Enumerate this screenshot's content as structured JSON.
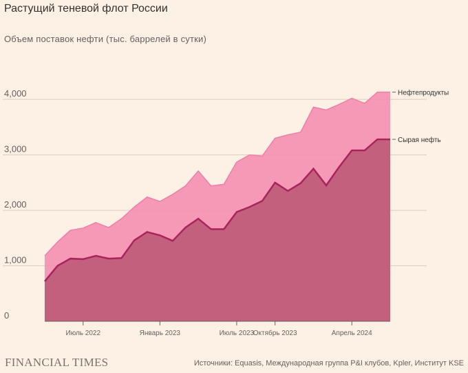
{
  "header": {
    "title": "Растущий теневой флот России",
    "subtitle": "Объем поставок нефти (тыс. баррелей в сутки)"
  },
  "footer": {
    "brand": "FINANCIAL TIMES",
    "source": "Источники: Equasis, Международная группа P&I клубов, Kpler, Институт KSE"
  },
  "chart_data": {
    "type": "area",
    "stacked": true,
    "x": [
      "2022-04",
      "2022-05",
      "2022-06",
      "2022-07",
      "2022-08",
      "2022-09",
      "2022-10",
      "2022-11",
      "2022-12",
      "2023-01",
      "2023-02",
      "2023-03",
      "2023-04",
      "2023-05",
      "2023-06",
      "2023-07",
      "2023-08",
      "2023-09",
      "2023-10",
      "2023-11",
      "2023-12",
      "2024-01",
      "2024-02",
      "2024-03",
      "2024-04",
      "2024-05",
      "2024-06",
      "2024-07"
    ],
    "x_tick_labels": [
      {
        "x": "2022-07",
        "label": "Июль 2022"
      },
      {
        "x": "2023-01",
        "label": "Январь 2023"
      },
      {
        "x": "2023-07",
        "label": "Июль 2023"
      },
      {
        "x": "2023-10",
        "label": "Октябрь 2023"
      },
      {
        "x": "2024-04",
        "label": "Апрель 2024"
      }
    ],
    "series": [
      {
        "name": "Сырая нефть",
        "color": "#c2426e",
        "values": [
          720,
          1000,
          1130,
          1120,
          1180,
          1130,
          1140,
          1460,
          1610,
          1550,
          1450,
          1690,
          1850,
          1660,
          1660,
          1970,
          2060,
          2170,
          2500,
          2350,
          2490,
          2750,
          2450,
          2780,
          3080,
          3080,
          3280,
          3280
        ]
      },
      {
        "name": "Нефтепродукты",
        "color": "#f48fb1",
        "values": [
          460,
          430,
          510,
          560,
          600,
          560,
          710,
          600,
          630,
          610,
          840,
          750,
          860,
          780,
          810,
          900,
          940,
          810,
          800,
          1010,
          920,
          1110,
          1360,
          1130,
          940,
          850,
          850,
          850
        ]
      }
    ],
    "totals": [
      1180,
      1430,
      1640,
      1680,
      1780,
      1690,
      1850,
      2060,
      2240,
      2160,
      2290,
      2440,
      2710,
      2440,
      2470,
      2870,
      3000,
      2980,
      3300,
      3360,
      3410,
      3860,
      3810,
      3910,
      4020,
      3930,
      4130,
      4130
    ],
    "y_ticks": [
      0,
      1000,
      2000,
      3000,
      4000
    ],
    "y_tick_labels": [
      "0",
      "1,000",
      "2,000",
      "3,000",
      "4,000"
    ],
    "ylim": [
      0,
      4300
    ],
    "grid": true,
    "legend": "inline-right"
  }
}
